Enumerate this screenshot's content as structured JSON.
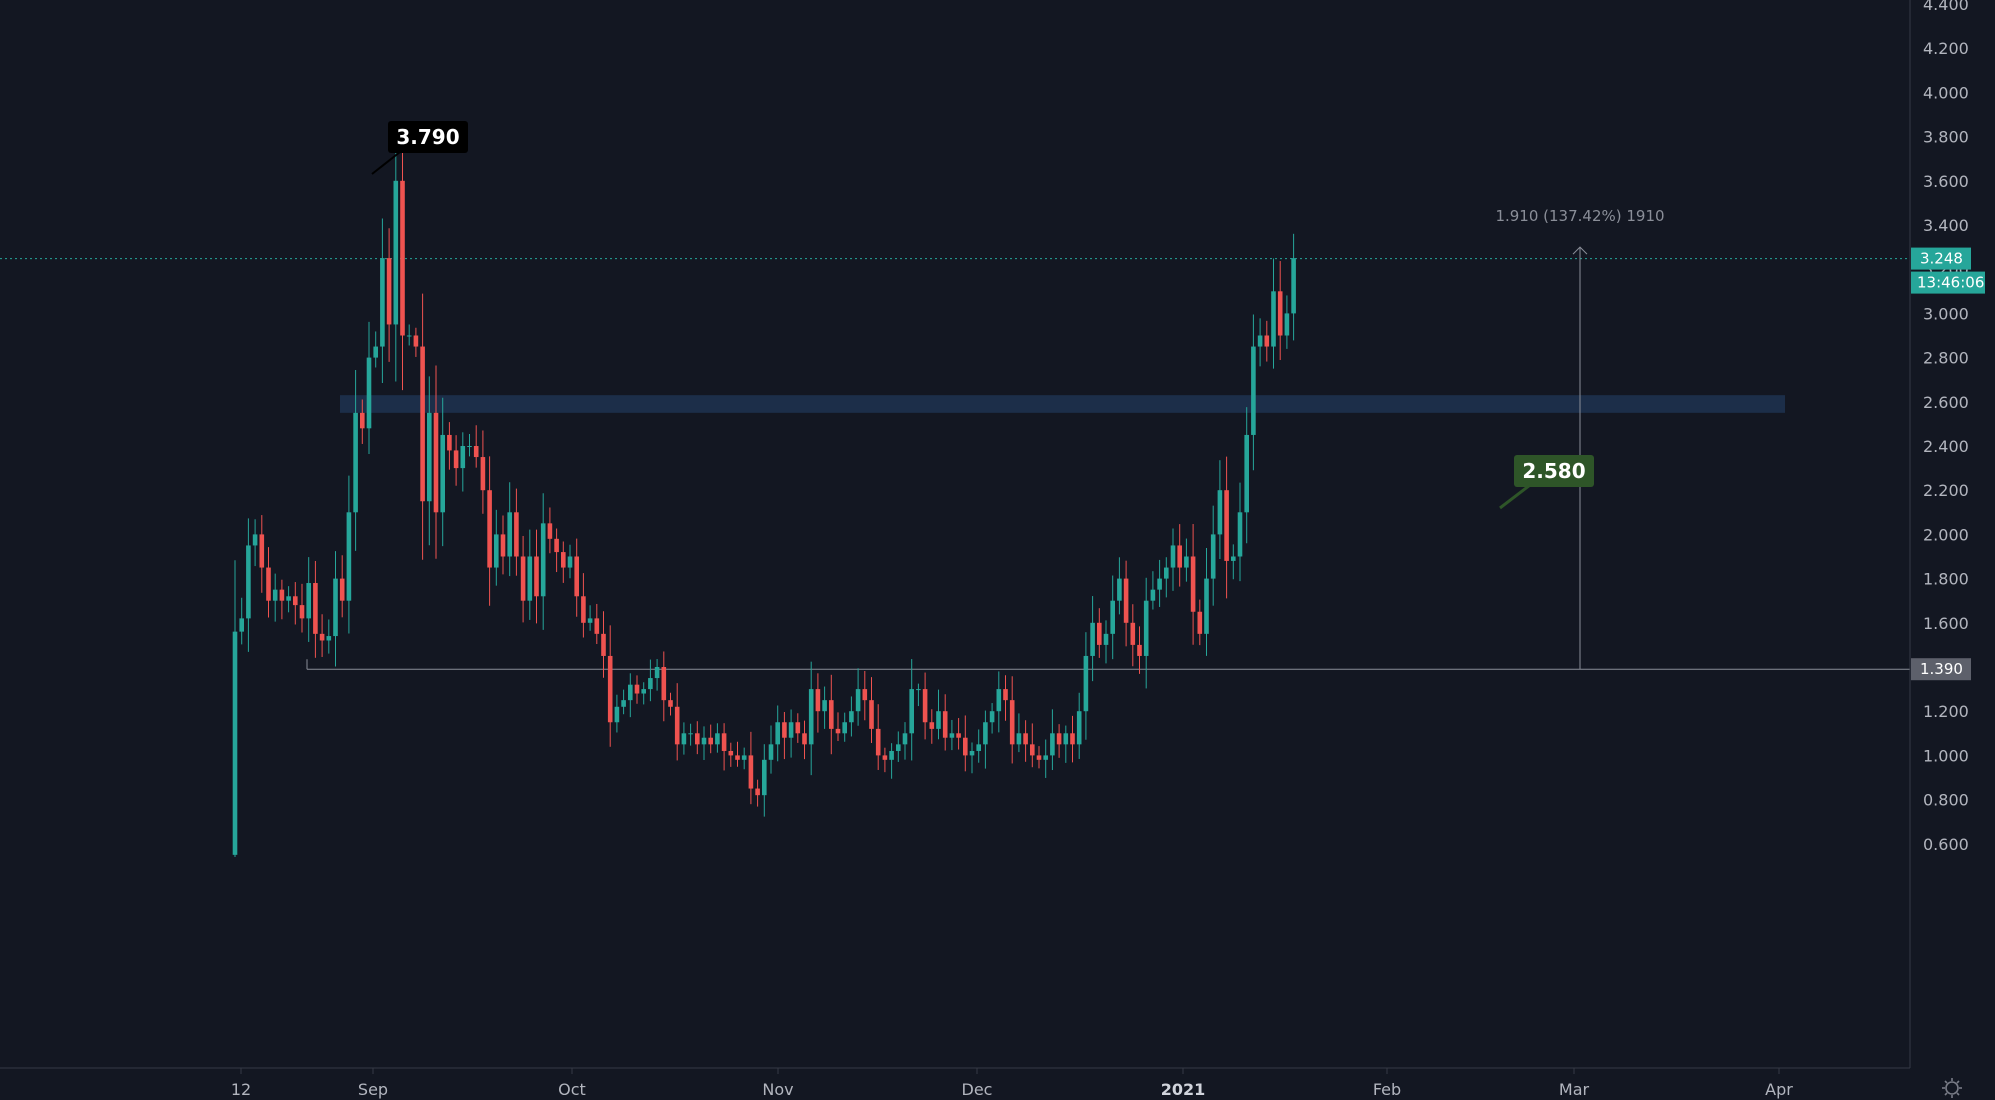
{
  "chart_data": {
    "type": "candlestick",
    "title": "",
    "ylim": [
      0.54,
      4.4
    ],
    "y_ticks": [
      "4.400",
      "4.200",
      "4.000",
      "3.800",
      "3.600",
      "3.400",
      "3.200",
      "3.000",
      "2.800",
      "2.600",
      "2.400",
      "2.200",
      "2.000",
      "1.800",
      "1.600",
      "1.400",
      "1.200",
      "1.000",
      "0.800",
      "0.600"
    ],
    "x_ticks": [
      {
        "label": "12",
        "bold": false
      },
      {
        "label": "Sep",
        "bold": false
      },
      {
        "label": "Oct",
        "bold": false
      },
      {
        "label": "Nov",
        "bold": false
      },
      {
        "label": "Dec",
        "bold": false
      },
      {
        "label": "2021",
        "bold": true
      },
      {
        "label": "Feb",
        "bold": false
      },
      {
        "label": "Mar",
        "bold": false
      },
      {
        "label": "Apr",
        "bold": false
      }
    ],
    "closes": [
      1.56,
      1.62,
      1.95,
      2.0,
      1.85,
      1.7,
      1.75,
      1.7,
      1.72,
      1.68,
      1.62,
      1.78,
      1.55,
      1.52,
      1.54,
      1.8,
      1.7,
      2.1,
      2.55,
      2.48,
      2.8,
      2.85,
      3.25,
      2.95,
      3.6,
      2.9,
      2.9,
      2.85,
      2.15,
      2.55,
      2.1,
      2.45,
      2.38,
      2.3,
      2.4,
      2.4,
      2.35,
      2.2,
      1.85,
      2.0,
      1.9,
      2.1,
      1.9,
      1.7,
      1.9,
      1.72,
      2.05,
      1.98,
      1.92,
      1.85,
      1.9,
      1.72,
      1.6,
      1.62,
      1.55,
      1.45,
      1.15,
      1.22,
      1.25,
      1.32,
      1.28,
      1.3,
      1.35,
      1.4,
      1.25,
      1.22,
      1.05,
      1.1,
      1.1,
      1.05,
      1.08,
      1.05,
      1.1,
      1.02,
      1.0,
      0.98,
      1.0,
      0.85,
      0.82,
      0.98,
      1.05,
      1.15,
      1.08,
      1.15,
      1.1,
      1.05,
      1.3,
      1.2,
      1.25,
      1.12,
      1.1,
      1.15,
      1.2,
      1.3,
      1.25,
      1.12,
      1.0,
      0.98,
      1.02,
      1.05,
      1.1,
      1.3,
      1.3,
      1.15,
      1.12,
      1.2,
      1.08,
      1.1,
      1.08,
      1.0,
      1.02,
      1.05,
      1.15,
      1.2,
      1.3,
      1.25,
      1.05,
      1.1,
      1.05,
      1.0,
      0.98,
      1.0,
      1.1,
      1.05,
      1.1,
      1.05,
      1.2,
      1.45,
      1.6,
      1.5,
      1.55,
      1.7,
      1.8,
      1.6,
      1.5,
      1.45,
      1.7,
      1.75,
      1.8,
      1.85,
      1.95,
      1.85,
      1.9,
      1.65,
      1.55,
      1.8,
      2.0,
      2.2,
      1.88,
      1.9,
      2.1,
      2.45,
      2.85,
      2.9,
      2.85,
      3.1,
      2.9,
      3.0,
      3.25
    ],
    "last_price": "3.248",
    "countdown": "13:46:06",
    "annotations": {
      "peak_label": "3.790",
      "support_label": "2.580",
      "level_label": "1.390",
      "measure_text": "1.910 (137.42%) 1910"
    },
    "support_zone": [
      2.55,
      2.63
    ],
    "horizontal_line": 1.39,
    "measure_from": 1.39,
    "measure_to": 3.3,
    "colors": {
      "background": "#131722",
      "up": "#26a69a",
      "down": "#ef5350",
      "zone": "#1e3350",
      "last_price": "#26a69a",
      "support_label": "#2e5528",
      "peak_label": "#000000",
      "level_tag": "#5d606b"
    }
  }
}
